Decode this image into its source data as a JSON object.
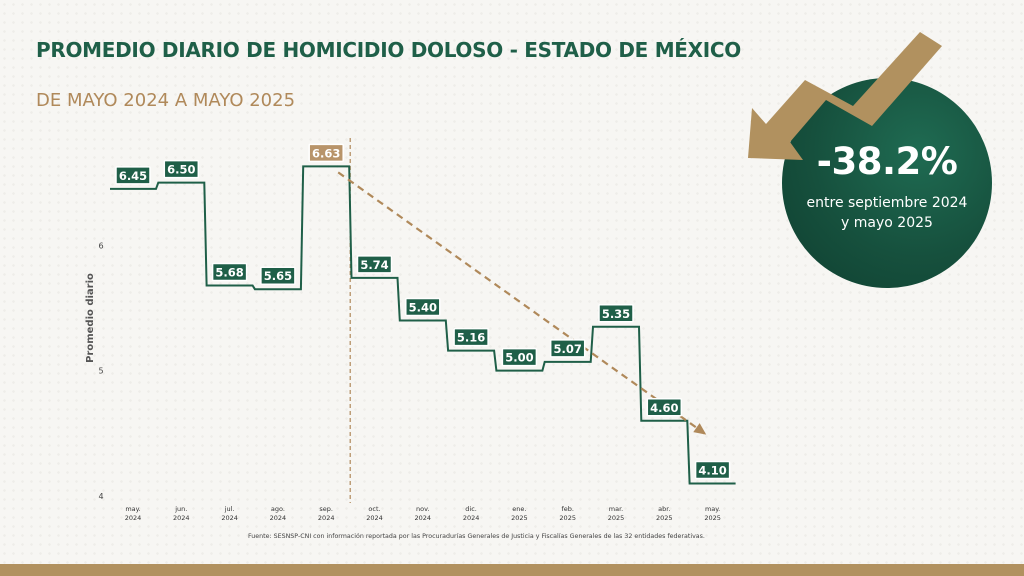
{
  "header": {
    "title": "PROMEDIO DIARIO DE HOMICIDIO DOLOSO - ESTADO DE MÉXICO",
    "subtitle": "DE MAYO 2024 A MAYO 2025"
  },
  "callout": {
    "percent": "-38.2%",
    "caption_line1": "entre septiembre 2024",
    "caption_line2": "y mayo 2025"
  },
  "footer": {
    "source": "Fuente: SESNSP-CNI con información reportada por las Procuradurías Generales de Justicia y Fiscalías Generales de las 32 entidades federativas."
  },
  "colors": {
    "green": "#1f5f48",
    "gold": "#b0895a",
    "label_bg": "#1f5f48",
    "highlight_label_bg": "#b8946a"
  },
  "chart_data": {
    "type": "line",
    "step": true,
    "ylabel": "Promedio diario",
    "ylim": [
      4,
      7
    ],
    "yticks": [
      "4",
      "5",
      "6"
    ],
    "categories": [
      [
        "may.",
        "2024"
      ],
      [
        "jun.",
        "2024"
      ],
      [
        "jul.",
        "2024"
      ],
      [
        "ago.",
        "2024"
      ],
      [
        "sep.",
        "2024"
      ],
      [
        "oct.",
        "2024"
      ],
      [
        "nov.",
        "2024"
      ],
      [
        "dic.",
        "2024"
      ],
      [
        "ene.",
        "2025"
      ],
      [
        "feb.",
        "2025"
      ],
      [
        "mar.",
        "2025"
      ],
      [
        "abr.",
        "2025"
      ],
      [
        "may.",
        "2025"
      ]
    ],
    "values": [
      6.45,
      6.5,
      5.68,
      5.65,
      6.63,
      5.74,
      5.4,
      5.16,
      5.0,
      5.07,
      5.35,
      4.6,
      4.1
    ],
    "data_labels": [
      "6.45",
      "6.50",
      "5.68",
      "5.65",
      "6.63",
      "5.74",
      "5.40",
      "5.16",
      "5.00",
      "5.07",
      "5.35",
      "4.60",
      "4.10"
    ],
    "highlight_index": 4,
    "trend": {
      "from_index": 4,
      "to_index": 12
    }
  }
}
